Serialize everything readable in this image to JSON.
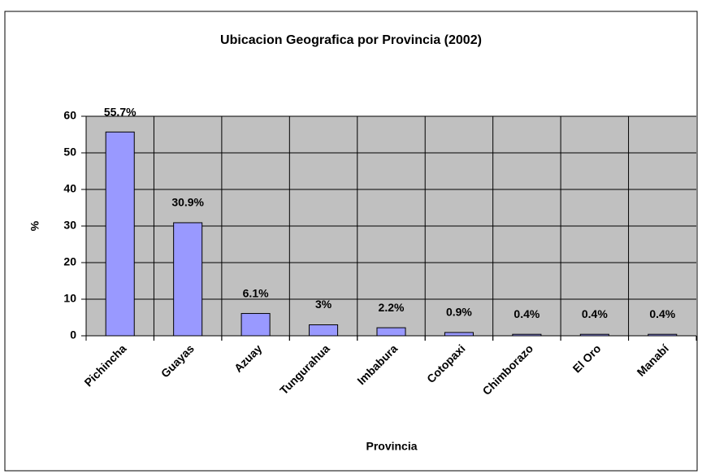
{
  "chart_data": {
    "type": "bar",
    "title": "Ubicacion Geografica por Provincia (2002)",
    "x_label": "Provincia",
    "y_label": "%",
    "categories": [
      "Pichincha",
      "Guayas",
      "Azuay",
      "Tungurahua",
      "Imbabura",
      "Cotopaxi",
      "Chimborazo",
      "El Oro",
      "Manabí"
    ],
    "values": [
      55.7,
      30.9,
      6.1,
      3,
      2.2,
      0.9,
      0.4,
      0.4,
      0.4
    ],
    "value_labels": [
      "55.7%",
      "30.9%",
      "6.1%",
      "3%",
      "2.2%",
      "0.9%",
      "0.4%",
      "0.4%",
      "0.4%"
    ],
    "color": "#9999ff",
    "ylim": [
      0,
      60
    ],
    "yticks": [
      0,
      10,
      20,
      30,
      40,
      50,
      60
    ],
    "grid": true
  }
}
